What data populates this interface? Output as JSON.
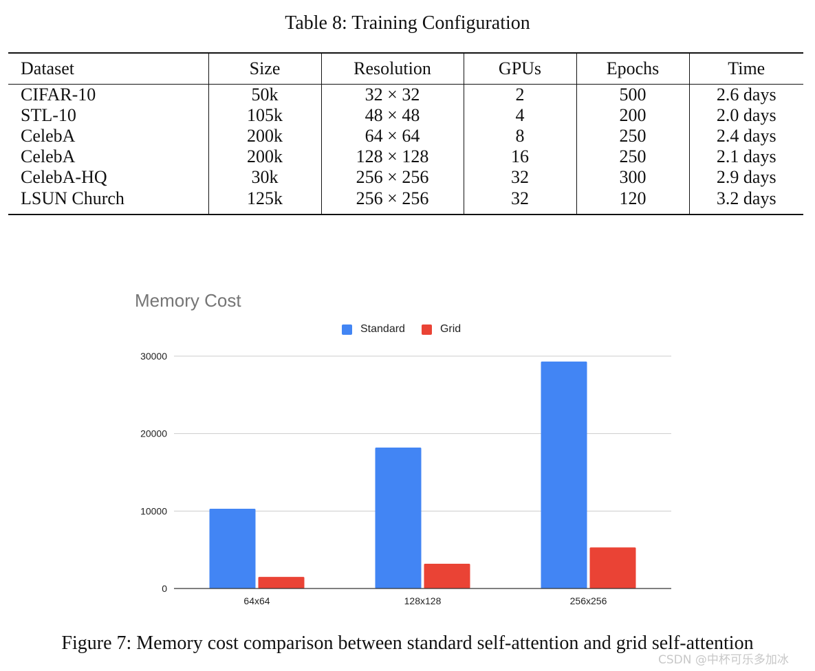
{
  "table": {
    "caption": "Table 8: Training Configuration",
    "headers": [
      "Dataset",
      "Size",
      "Resolution",
      "GPUs",
      "Epochs",
      "Time"
    ],
    "rows": [
      [
        "CIFAR-10",
        "50k",
        "32 × 32",
        "2",
        "500",
        "2.6 days"
      ],
      [
        "STL-10",
        "105k",
        "48 × 48",
        "4",
        "200",
        "2.0 days"
      ],
      [
        "CelebA",
        "200k",
        "64 × 64",
        "8",
        "250",
        "2.4 days"
      ],
      [
        "CelebA",
        "200k",
        "128 × 128",
        "16",
        "250",
        "2.1 days"
      ],
      [
        "CelebA-HQ",
        "30k",
        "256 × 256",
        "32",
        "300",
        "2.9 days"
      ],
      [
        "LSUN Church",
        "125k",
        "256 × 256",
        "32",
        "120",
        "3.2 days"
      ]
    ]
  },
  "chart_data": {
    "type": "bar",
    "title": "Memory Cost",
    "categories": [
      "64x64",
      "128x128",
      "256x256"
    ],
    "series": [
      {
        "name": "Standard",
        "color": "#4285f4",
        "values": [
          10300,
          18200,
          29300
        ]
      },
      {
        "name": "Grid",
        "color": "#ea4335",
        "values": [
          1500,
          3200,
          5300
        ]
      }
    ],
    "y_ticks": [
      0,
      10000,
      20000,
      30000
    ],
    "ylim": [
      0,
      30000
    ],
    "legend_position": "top-center",
    "grid": true,
    "xlabel": "",
    "ylabel": ""
  },
  "figure": {
    "caption": "Figure 7: Memory cost comparison between standard self-attention and grid self-attention"
  },
  "watermark": "CSDN @中杯可乐多加冰"
}
